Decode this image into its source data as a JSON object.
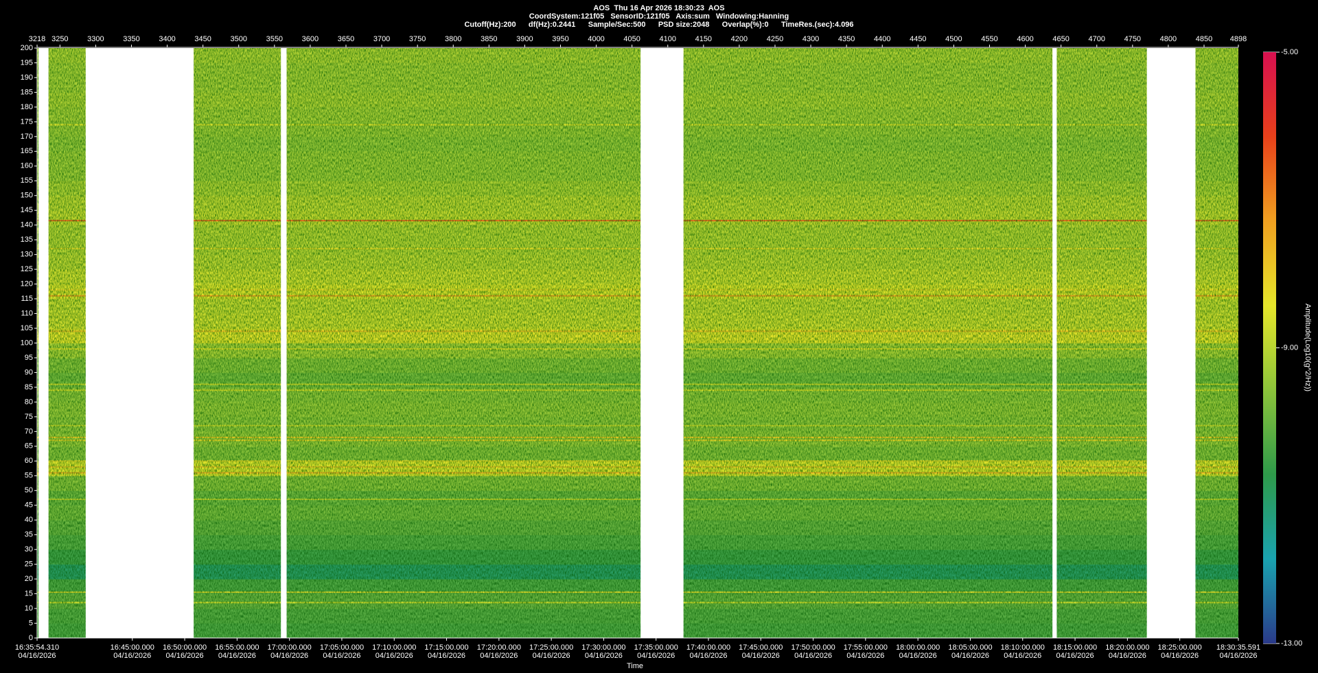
{
  "chart_data": {
    "type": "spectrogram",
    "title": "AOS  Thu 16 Apr 2026 18:30:23  AOS",
    "subtitle": "CoordSystem:121f05   SensorID:121f05   Axis:sum   Windowing:Hanning",
    "info": "Cutoff(Hz):200      df(Hz):0.2441      Sample/Sec:500      PSD size:2048      Overlap(%):0      TimeRes.(sec):4.096",
    "xlabel": "Time",
    "colorbar_label": "Amplitude(Log10(g^2/Hz))",
    "ylim": [
      0,
      200
    ],
    "yticks": [
      0,
      5,
      10,
      15,
      20,
      25,
      30,
      35,
      40,
      45,
      50,
      55,
      60,
      65,
      70,
      75,
      80,
      85,
      90,
      95,
      100,
      105,
      110,
      115,
      120,
      125,
      130,
      135,
      140,
      145,
      150,
      155,
      160,
      165,
      170,
      175,
      180,
      185,
      190,
      195,
      200
    ],
    "x2lim": [
      3218,
      4898
    ],
    "x2ticks": [
      3218,
      3250,
      3300,
      3350,
      3400,
      3450,
      3500,
      3550,
      3600,
      3650,
      3700,
      3750,
      3800,
      3850,
      3900,
      3950,
      4000,
      4050,
      4100,
      4150,
      4200,
      4250,
      4300,
      4350,
      4400,
      4450,
      4500,
      4550,
      4600,
      4650,
      4700,
      4750,
      4800,
      4850,
      4898
    ],
    "xlim": [
      "16:35:54.310",
      "18:30:35.591"
    ],
    "xticks": [
      {
        "time": "16:35:54.310",
        "date": "04/16/2026"
      },
      {
        "time": "16:45:00.000",
        "date": "04/16/2026"
      },
      {
        "time": "16:50:00.000",
        "date": "04/16/2026"
      },
      {
        "time": "16:55:00.000",
        "date": "04/16/2026"
      },
      {
        "time": "17:00:00.000",
        "date": "04/16/2026"
      },
      {
        "time": "17:05:00.000",
        "date": "04/16/2026"
      },
      {
        "time": "17:10:00.000",
        "date": "04/16/2026"
      },
      {
        "time": "17:15:00.000",
        "date": "04/16/2026"
      },
      {
        "time": "17:20:00.000",
        "date": "04/16/2026"
      },
      {
        "time": "17:25:00.000",
        "date": "04/16/2026"
      },
      {
        "time": "17:30:00.000",
        "date": "04/16/2026"
      },
      {
        "time": "17:35:00.000",
        "date": "04/16/2026"
      },
      {
        "time": "17:40:00.000",
        "date": "04/16/2026"
      },
      {
        "time": "17:45:00.000",
        "date": "04/16/2026"
      },
      {
        "time": "17:50:00.000",
        "date": "04/16/2026"
      },
      {
        "time": "17:55:00.000",
        "date": "04/16/2026"
      },
      {
        "time": "18:00:00.000",
        "date": "04/16/2026"
      },
      {
        "time": "18:05:00.000",
        "date": "04/16/2026"
      },
      {
        "time": "18:10:00.000",
        "date": "04/16/2026"
      },
      {
        "time": "18:15:00.000",
        "date": "04/16/2026"
      },
      {
        "time": "18:20:00.000",
        "date": "04/16/2026"
      },
      {
        "time": "18:25:00.000",
        "date": "04/16/2026"
      },
      {
        "time": "18:30:35.591",
        "date": "04/16/2026"
      }
    ],
    "clim": [
      -13,
      -5
    ],
    "cticks": [
      {
        "value": -5,
        "label": "-5.00"
      },
      {
        "value": -9,
        "label": "-9.00"
      },
      {
        "value": -13,
        "label": "-13.00"
      }
    ],
    "colormap": [
      "#2a3a8a",
      "#1aa3b0",
      "#2e9a4a",
      "#8cc43a",
      "#e6e62a",
      "#f0a020",
      "#e8401a",
      "#d81050"
    ],
    "freq_bins": [
      0,
      5,
      10,
      15,
      20,
      25,
      30,
      35,
      40,
      45,
      50,
      55,
      60,
      65,
      70,
      75,
      80,
      85,
      90,
      95,
      100,
      105,
      110,
      115,
      120,
      125,
      130,
      135,
      140,
      145,
      150,
      155,
      160,
      165,
      170,
      175,
      180,
      185,
      190,
      195,
      200
    ],
    "levels": [
      -10.3,
      -10.2,
      -10.0,
      -10.3,
      -11.0,
      -10.5,
      -10.2,
      -10.0,
      -9.8,
      -9.9,
      -9.6,
      -8.5,
      -9.6,
      -9.4,
      -9.5,
      -9.4,
      -9.5,
      -9.8,
      -9.6,
      -9.2,
      -8.4,
      -8.7,
      -8.8,
      -8.5,
      -8.7,
      -8.9,
      -9.0,
      -9.0,
      -8.8,
      -8.9,
      -9.1,
      -9.3,
      -9.3,
      -9.4,
      -9.3,
      -9.2,
      -9.1,
      -9.2,
      -9.2,
      -9.1
    ],
    "lines": [
      {
        "freq": 174,
        "level": -8.5
      },
      {
        "freq": 141.5,
        "level": -6.6
      },
      {
        "freq": 132,
        "level": -8.3
      },
      {
        "freq": 118,
        "level": -8.2
      },
      {
        "freq": 116,
        "level": -7.3
      },
      {
        "freq": 104,
        "level": -7.8
      },
      {
        "freq": 98,
        "level": -8.4
      },
      {
        "freq": 86,
        "level": -8.6
      },
      {
        "freq": 84,
        "level": -8.5
      },
      {
        "freq": 72,
        "level": -8.7
      },
      {
        "freq": 68,
        "level": -8.0
      },
      {
        "freq": 67,
        "level": -8.2
      },
      {
        "freq": 60,
        "level": -8.2
      },
      {
        "freq": 58,
        "level": -7.9
      },
      {
        "freq": 56,
        "level": -7.6
      },
      {
        "freq": 47,
        "level": -8.8
      },
      {
        "freq": 15.5,
        "level": -8.3
      },
      {
        "freq": 12,
        "level": -8.6
      }
    ],
    "gaps": [
      [
        3220,
        3234
      ],
      [
        3286,
        3437
      ],
      [
        3559,
        3567
      ],
      [
        4062,
        4122
      ],
      [
        4638,
        4644
      ],
      [
        4770,
        4838
      ]
    ]
  }
}
